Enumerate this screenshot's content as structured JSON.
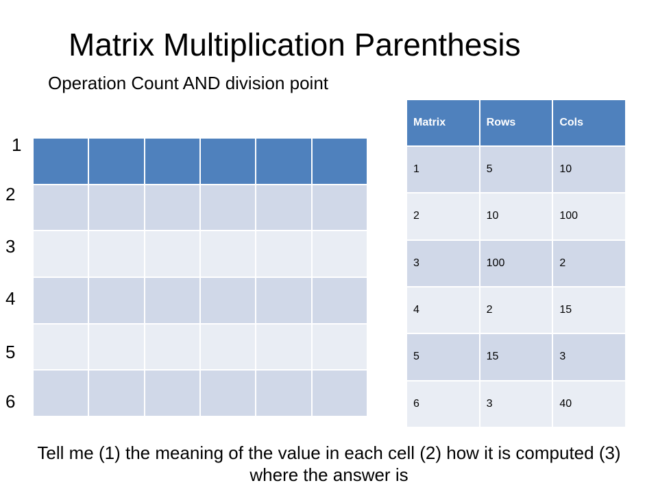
{
  "slide": {
    "title": "Matrix Multiplication Parenthesis",
    "subtitle": "Operation Count AND division point",
    "footer": "Tell me  (1) the meaning of the value in each cell (2) how it is computed (3) where the answer is"
  },
  "grid": {
    "row_labels": [
      "1",
      "2",
      "3",
      "4",
      "5",
      "6"
    ]
  },
  "matrix_table": {
    "headers": [
      "Matrix",
      "Rows",
      "Cols"
    ],
    "rows": [
      [
        "1",
        "5",
        "10"
      ],
      [
        "2",
        "10",
        "100"
      ],
      [
        "3",
        "100",
        "2"
      ],
      [
        "4",
        "2",
        "15"
      ],
      [
        "5",
        "15",
        "3"
      ],
      [
        "6",
        "3",
        "40"
      ]
    ]
  },
  "colors": {
    "header_blue": "#4f81bd",
    "band_dark": "#d0d8e8",
    "band_light": "#e9edf4"
  }
}
